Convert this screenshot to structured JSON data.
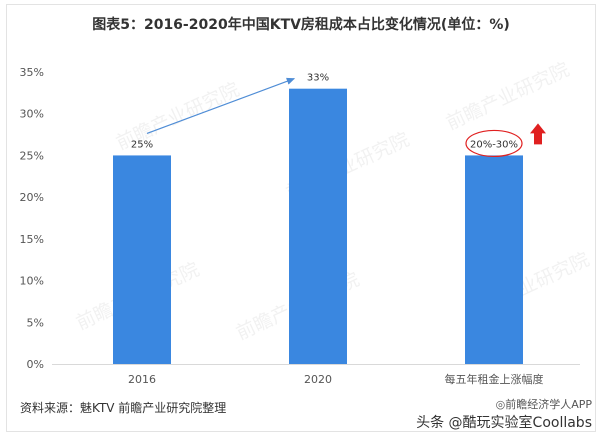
{
  "chart_data": {
    "type": "bar",
    "title": "图表5：2016-2020年中国KTV房租成本占比变化情况(单位：%)",
    "categories": [
      "2016",
      "2020",
      "每五年租金上涨幅度"
    ],
    "values": [
      25,
      33,
      25
    ],
    "data_labels": [
      "25%",
      "33%",
      "20%-30%"
    ],
    "yticks": [
      "0%",
      "5%",
      "10%",
      "15%",
      "20%",
      "25%",
      "30%",
      "35%"
    ],
    "ylim": [
      0,
      35
    ],
    "grid": false,
    "bar_color": "#3a87e0",
    "arrow_color": "#4f8dd6",
    "highlight_color": "#e02020"
  },
  "source_note": "资料来源：魅KTV 前瞻产业研究院整理",
  "watermark": "前瞻产业研究院",
  "credit": {
    "line1": "◎前瞻经济学人APP",
    "line2": "头条 @酷玩实验室Coollabs"
  }
}
